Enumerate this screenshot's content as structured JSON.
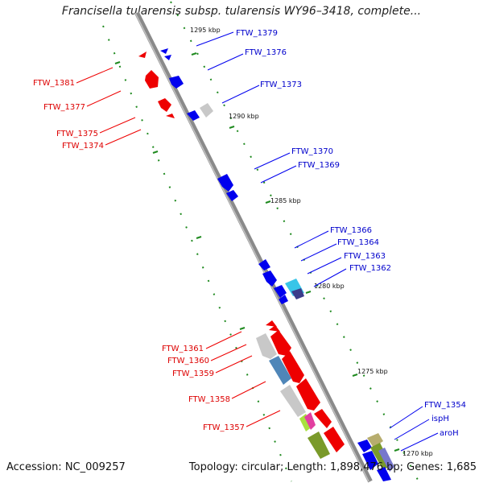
{
  "title": "Francisella tularensis subsp. tularensis WY96–3418, complete...",
  "footer": {
    "accession": "Accession: NC_009257",
    "stats": "Topology: circular; Length: 1,898,476 bp; Genes: 1,685"
  },
  "colors": {
    "reverse_strand": "#ee0000",
    "forward_strand": "#0000ee",
    "backbone": "#888888",
    "tick": "#1f8a1f",
    "other_gene": "#c8c8c8",
    "steel_gene": "#4f86b8",
    "cyan_gene": "#39c5e8",
    "magenta_gene": "#e23fa0",
    "lime_gene": "#a8e040",
    "olive_gene": "#7a9a2a",
    "khaki_gene": "#b7ad6e",
    "slate_gene": "#7777cc"
  },
  "kbp_labels": [
    "1295 kbp",
    "1290 kbp",
    "1285 kbp",
    "1280 kbp",
    "1275 kbp",
    "1270 kbp"
  ],
  "left_labels": [
    "FTW_1381",
    "FTW_1377",
    "FTW_1375",
    "FTW_1374",
    "FTW_1361",
    "FTW_1360",
    "FTW_1359",
    "FTW_1358",
    "FTW_1357"
  ],
  "right_labels": [
    "FTW_1379",
    "FTW_1376",
    "FTW_1373",
    "FTW_1370",
    "FTW_1369",
    "FTW_1366",
    "FTW_1364",
    "FTW_1363",
    "FTW_1362",
    "FTW_1354",
    "ispH",
    "aroH"
  ]
}
